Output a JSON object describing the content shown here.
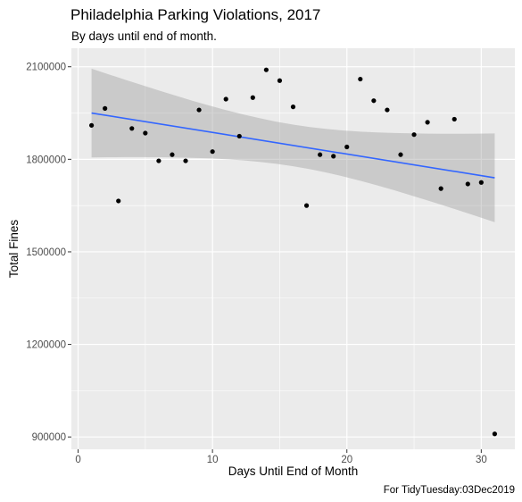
{
  "chart_data": {
    "type": "scatter",
    "title": "Philadelphia Parking Violations, 2017",
    "subtitle": "By days until end of month.",
    "xlabel": "Days Until End of Month",
    "ylabel": "Total Fines",
    "caption": "For TidyTuesday:03Dec2019",
    "xlim": [
      -0.5,
      32.5
    ],
    "ylim": [
      860000,
      2160000
    ],
    "x_ticks": [
      0,
      10,
      20,
      30
    ],
    "x_tick_labels": [
      "0",
      "10",
      "20",
      "30"
    ],
    "y_ticks": [
      900000,
      1200000,
      1500000,
      1800000,
      2100000
    ],
    "y_tick_labels": [
      "900000",
      "1200000",
      "1500000",
      "1800000",
      "2100000"
    ],
    "grid": true,
    "points": {
      "x": [
        1,
        2,
        3,
        4,
        5,
        6,
        7,
        8,
        9,
        10,
        11,
        12,
        13,
        14,
        15,
        16,
        17,
        18,
        19,
        20,
        21,
        22,
        23,
        24,
        25,
        26,
        27,
        28,
        29,
        30,
        31
      ],
      "y": [
        1910000,
        1965000,
        1665000,
        1900000,
        1885000,
        1795000,
        1815000,
        1795000,
        1960000,
        1825000,
        1995000,
        1875000,
        2000000,
        2090000,
        2055000,
        1970000,
        1650000,
        1815000,
        1810000,
        1840000,
        2060000,
        1990000,
        1960000,
        1815000,
        1880000,
        1920000,
        1705000,
        1930000,
        1720000,
        1725000,
        910000
      ],
      "color": "#000000"
    },
    "trend": {
      "method": "linear",
      "x": [
        1,
        31
      ],
      "y": [
        1950000,
        1740000
      ],
      "ci_lower": [
        1810000,
        1595000
      ],
      "ci_upper": [
        2095000,
        1885000
      ],
      "line_color": "#3366FF",
      "band_color": "#999999"
    },
    "panel_color": "#EBEBEB",
    "grid_color": "#FFFFFF"
  }
}
